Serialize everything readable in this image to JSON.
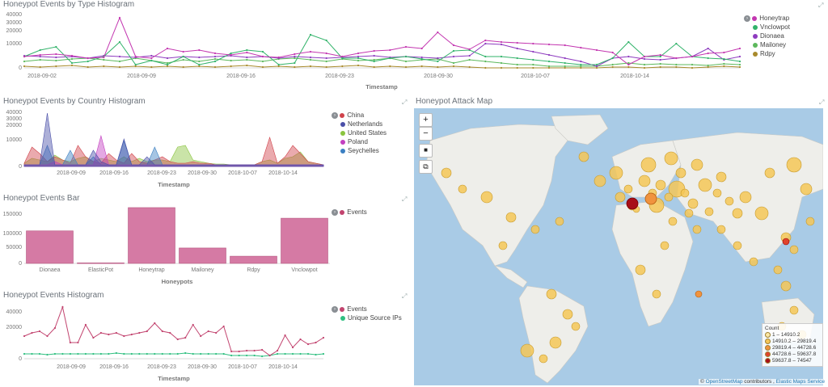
{
  "colors": {
    "honeytrap": "#c336b0",
    "vnclowpot": "#32b36a",
    "dionaea": "#8e3bbf",
    "mailoney": "#5cb85c",
    "rdpy": "#a88a2c",
    "china": "#d0434b",
    "netherlands": "#4a4fa8",
    "united_states": "#8ac43f",
    "poland": "#c33fc0",
    "seychelles": "#3a7fc2",
    "events": "#c2446f",
    "unique_ips": "#2fbf80",
    "bar_fill": "#d57aa4",
    "map_ocean": "#a9cbe6",
    "map_land": "#eeeeea",
    "bubble": "#f5c757"
  },
  "type_hist": {
    "title": "Honeypot Events by Type Histogram",
    "xlabel": "Timestamp",
    "y_ticks": [
      "40000",
      "30000",
      "20000",
      "10000",
      "0"
    ],
    "x_ticks": [
      "2018-09-02",
      "2018-09-09",
      "2018-09-16",
      "2018-09-23",
      "2018-09-30",
      "2018-10-07",
      "2018-10-14"
    ],
    "legend": [
      "Honeytrap",
      "Vnclowpot",
      "Dionaea",
      "Mailoney",
      "Rdpy"
    ],
    "toggle_icon": "chevron-icon"
  },
  "country_hist": {
    "title": "Honeypot Events by Country Histogram",
    "xlabel": "Timestamp",
    "y_ticks": [
      "40000",
      "30000",
      "20000",
      "10000",
      "0"
    ],
    "x_ticks": [
      "2018-09-09",
      "2018-09-16",
      "2018-09-23",
      "2018-09-30",
      "2018-10-07",
      "2018-10-14"
    ],
    "legend": [
      "China",
      "Netherlands",
      "United States",
      "Poland",
      "Seychelles"
    ]
  },
  "bar": {
    "title": "Honeypot Events Bar",
    "xlabel": "Honeypots",
    "y_ticks": [
      "150000",
      "100000",
      "50000",
      "0"
    ],
    "legend": [
      "Events"
    ],
    "chart_data": {
      "type": "bar",
      "categories": [
        "Dionaea",
        "ElasticPot",
        "Honeytrap",
        "Mailoney",
        "Rdpy",
        "Vnclowpot"
      ],
      "values": [
        95000,
        1500,
        163000,
        45000,
        21000,
        132000
      ],
      "xlabel": "Honeypots",
      "ylim": [
        0,
        170000
      ]
    }
  },
  "events_hist": {
    "title": "Honeypot Events Histogram",
    "xlabel": "Timestamp",
    "y_ticks": [
      "40000",
      "20000",
      "0"
    ],
    "x_ticks": [
      "2018-09-09",
      "2018-09-16",
      "2018-09-23",
      "2018-09-30",
      "2018-10-07",
      "2018-10-14"
    ],
    "legend": [
      "Events",
      "Unique Source IPs"
    ]
  },
  "map": {
    "title": "Honeypot Attack Map",
    "zoom_in": "+",
    "zoom_out": "−",
    "draw_icon": "■",
    "crop_icon": "⧉",
    "legend_title": "Count",
    "legend": [
      "1 – 14910.2",
      "14910.2 – 29819.4",
      "29819.4 – 44728.6",
      "44728.6 – 59637.8",
      "59637.8 – 74547"
    ],
    "legend_colors": [
      "#fbe8a6",
      "#f5c757",
      "#f0933e",
      "#e0432c",
      "#a80f18"
    ],
    "attribution_prefix": "©",
    "attribution_osm": "OpenStreetMap",
    "attribution_mid": "contributors ,",
    "attribution_ems": "Elastic Maps Service"
  }
}
